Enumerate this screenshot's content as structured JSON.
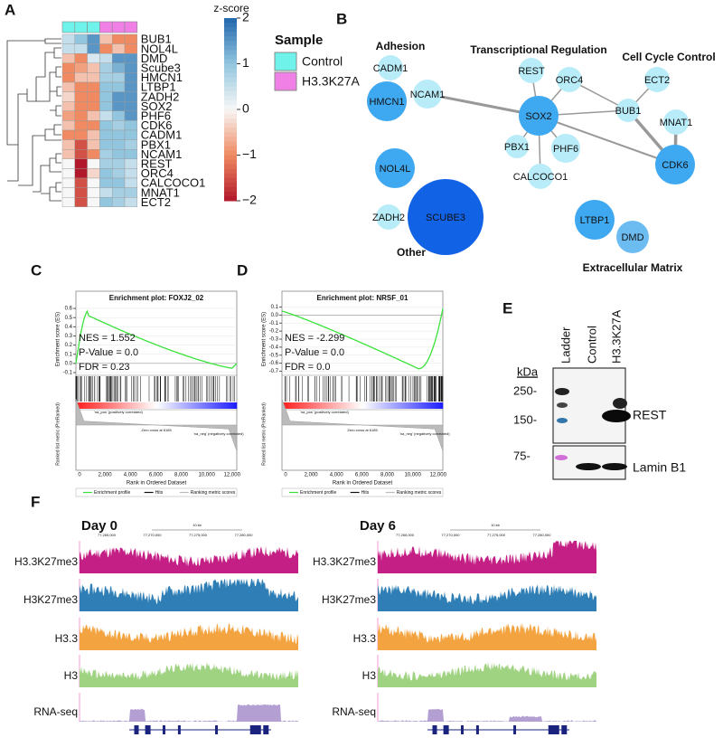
{
  "panels": {
    "A": {
      "label": "A",
      "genes": [
        "BUB1",
        "NOL4L",
        "DMD",
        "Scube3",
        "HMCN1",
        "LTBP1",
        "ZADH2",
        "SOX2",
        "PHF6",
        "CDK6",
        "CADM1",
        "PBX1",
        "NCAM1",
        "REST",
        "ORC4",
        "CALCOCO1",
        "MNAT1",
        "ECT2"
      ],
      "column_sample": [
        0,
        0,
        0,
        1,
        1,
        1
      ],
      "values": [
        [
          0.5,
          1,
          1.5,
          -0.5,
          -1,
          -1
        ],
        [
          0.5,
          0.5,
          1.5,
          -1,
          -0.5,
          -1
        ],
        [
          -0.5,
          -1,
          0.3,
          0.5,
          1.5,
          1.5
        ],
        [
          -1,
          -0.8,
          -0.5,
          0.8,
          1.2,
          1.5
        ],
        [
          -1,
          -0.5,
          -0.5,
          0.8,
          0.8,
          1.5
        ],
        [
          -0.5,
          -1,
          -1,
          1,
          1,
          1.5
        ],
        [
          -0.3,
          -1,
          -1,
          1,
          1.5,
          1.5
        ],
        [
          -0.5,
          -1,
          -1,
          1,
          1.5,
          1.5
        ],
        [
          -0.8,
          -1,
          -0.5,
          0.5,
          1,
          1.5
        ],
        [
          -0.5,
          -1,
          -1,
          1,
          0.8,
          1
        ],
        [
          -1,
          -1,
          -0.5,
          1,
          1,
          1
        ],
        [
          -0.5,
          -1.5,
          -0.5,
          1,
          1,
          0.8
        ],
        [
          -0.5,
          -1.5,
          -1,
          0.8,
          1,
          1
        ],
        [
          0,
          -2,
          0,
          0.8,
          0.8,
          0.5
        ],
        [
          0,
          -2,
          -0.3,
          1,
          0.8,
          0.5
        ],
        [
          0,
          -1.5,
          0,
          1,
          1,
          0.5
        ],
        [
          0,
          -1.5,
          0,
          0.5,
          0.8,
          0.8
        ],
        [
          0,
          -1.5,
          0,
          1,
          0.8,
          0.5
        ]
      ],
      "colorbar": {
        "title": "z-score",
        "range": [
          -2,
          2
        ],
        "ticks": [
          2,
          1,
          0,
          {
            "value": -1,
            "label": "−1"
          },
          {
            "value": -2,
            "label": "−2"
          }
        ],
        "colors": [
          "#b2182b",
          "#ef8a62",
          "#f7f7f7",
          "#92c5de",
          "#2166ac"
        ]
      },
      "sample_legend": {
        "title": "Sample",
        "items": [
          {
            "name": "Control",
            "color": "#6ef2ea"
          },
          {
            "name": "H3.3K27A",
            "color": "#f080e6"
          }
        ]
      }
    },
    "B": {
      "label": "B",
      "groups": [
        "Adhesion",
        "Transcriptional Regulation",
        "Cell Cycle Control",
        "Other",
        "Extracellular Matrix"
      ],
      "nodes": [
        {
          "label": "CADM1",
          "color": "#b8ecf8"
        },
        {
          "label": "HMCN1",
          "color": "#3ea8f0"
        },
        {
          "label": "NCAM1",
          "color": "#b8ecf8"
        },
        {
          "label": "REST",
          "color": "#b8ecf8"
        },
        {
          "label": "ORC4",
          "color": "#b8ecf8"
        },
        {
          "label": "SOX2",
          "color": "#3ea8f0"
        },
        {
          "label": "PBX1",
          "color": "#b8ecf8"
        },
        {
          "label": "PHF6",
          "color": "#b8ecf8"
        },
        {
          "label": "CALCOCO1",
          "color": "#b8ecf8"
        },
        {
          "label": "BUB1",
          "color": "#b8ecf8"
        },
        {
          "label": "ECT2",
          "color": "#b8ecf8"
        },
        {
          "label": "MNAT1",
          "color": "#b8ecf8"
        },
        {
          "label": "CDK6",
          "color": "#3ea8f0"
        },
        {
          "label": "NOL4L",
          "color": "#3ea8f0"
        },
        {
          "label": "SCUBE3",
          "color": "#1262e6"
        },
        {
          "label": "ZADH2",
          "color": "#b8ecf8"
        },
        {
          "label": "LTBP1",
          "color": "#3ea8f0"
        },
        {
          "label": "DMD",
          "color": "#6cbcf2"
        }
      ]
    },
    "C": {
      "label": "C",
      "title": "Enrichment plot: FOXJ2_02",
      "stats": [
        "NES = 1.552",
        "P-Value = 0.0",
        "FDR = 0.23"
      ],
      "yticks": [
        0.6,
        0.5,
        0.4,
        0.3,
        0.2,
        0.1,
        {
          "value": 0,
          "label": "0.0"
        },
        -0.1
      ],
      "ylim": [
        -0.12,
        0.65
      ],
      "xticks": [
        0,
        "2,000",
        "4,000",
        "6,000",
        "8,000",
        "10,000",
        "12,000"
      ],
      "y_label": "Enrichment score (ES)",
      "y2_label": "Ranked list metric (PreRanked)",
      "x_label": "Rank in Ordered Dataset",
      "pos": "'na_pos' (positively correlated)",
      "neg": "'na_neg' (negatively correlated)",
      "zero": "Zero cross at 6185",
      "legend": [
        "Enrichment profile",
        "Hits",
        "Ranking metric scores"
      ]
    },
    "D": {
      "label": "D",
      "title": "Enrichment plot: NRSF_01",
      "stats": [
        "NES = -2.299",
        "P-Value = 0.0",
        "FDR = 0.0"
      ],
      "yticks": [
        0.1,
        {
          "value": 0,
          "label": "0.0"
        },
        -0.1,
        -0.2,
        -0.3,
        -0.4,
        -0.5,
        -0.6,
        -0.7
      ],
      "ylim": [
        -0.74,
        0.14
      ],
      "xticks": [
        0,
        "2,000",
        "4,000",
        "6,000",
        "8,000",
        "10,000",
        "12,000"
      ],
      "y_label": "Enrichment score (ES)",
      "y2_label": "Ranked list metric (PreRanked)",
      "x_label": "Rank in Ordered Dataset",
      "pos": "'na_pos' (positively correlated)",
      "neg": "'na_neg' (negatively correlated)",
      "zero": "Zero cross at 6185",
      "legend": [
        "Enrichment profile",
        "Hits",
        "Ranking metric scores"
      ]
    },
    "E": {
      "label": "E",
      "lanes": [
        "Ladder",
        "Control",
        "H3.3K27A"
      ],
      "unit": "kDa",
      "markers": [
        "250-",
        "150-",
        "75-"
      ],
      "bands": [
        "REST",
        "Lamin B1"
      ]
    },
    "F": {
      "label": "F",
      "days": [
        "Day 0",
        "Day 6"
      ],
      "tracks": [
        {
          "name": "H3.3K27me3",
          "color": "#c41f84"
        },
        {
          "name": "H3K27me3",
          "color": "#2f7fb6"
        },
        {
          "name": "H3.3",
          "color": "#f3a440"
        },
        {
          "name": "H3",
          "color": "#9fd382"
        },
        {
          "name": "RNA-seq",
          "color": "#b39fd2"
        }
      ],
      "coords": [
        "77,265,000",
        "77,270,000",
        "77,275,000",
        "77,280,000"
      ],
      "scale": "10 kb"
    }
  }
}
